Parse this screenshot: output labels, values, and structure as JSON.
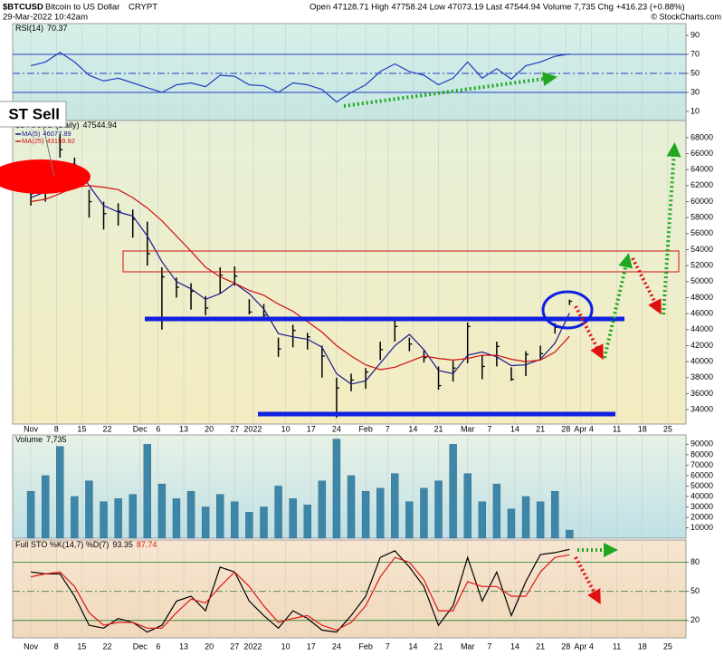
{
  "header": {
    "symbol": "$BTCUSD",
    "name": "Bitcoin to US Dollar",
    "exchange": "CRYPT",
    "timestamp": "29-Mar-2022 10:42am",
    "quote": "Open 47128.71 High 47758.24 Low 47073.19 Last 47544.94 Volume 7,735 Chg +416.23 (+0.88%)",
    "credit": "© StockCharts.com"
  },
  "annotation": "ST Sell",
  "chart_data": [
    {
      "type": "line",
      "label": "RSI(14)",
      "ylim": [
        0,
        100
      ],
      "yticks": [
        90,
        70,
        50,
        30,
        10
      ],
      "hlines": [
        70,
        50,
        30
      ],
      "series": [
        {
          "name": "RSI(14)",
          "color": "#1f3fbf",
          "latest": 70.37,
          "values": [
            58,
            62,
            72,
            62,
            48,
            42,
            45,
            40,
            35,
            30,
            38,
            40,
            36,
            48,
            47,
            38,
            37,
            30,
            40,
            38,
            33,
            20,
            30,
            38,
            52,
            60,
            52,
            48,
            38,
            45,
            62,
            45,
            55,
            44,
            58,
            62,
            68,
            70.37
          ]
        }
      ]
    },
    {
      "type": "ohlc",
      "label": "$BTCUSD (Daily)",
      "latest": 47544.94,
      "x": [
        "2021-11-01",
        "2021-11-05",
        "2021-11-09",
        "2021-11-13",
        "2021-11-17",
        "2021-11-21",
        "2021-11-25",
        "2021-11-29",
        "2021-12-03",
        "2021-12-07",
        "2021-12-11",
        "2021-12-15",
        "2021-12-19",
        "2021-12-23",
        "2021-12-27",
        "2021-12-31",
        "2022-01-04",
        "2022-01-08",
        "2022-01-12",
        "2022-01-16",
        "2022-01-20",
        "2022-01-24",
        "2022-01-28",
        "2022-02-01",
        "2022-02-05",
        "2022-02-09",
        "2022-02-13",
        "2022-02-17",
        "2022-02-21",
        "2022-02-25",
        "2022-03-01",
        "2022-03-05",
        "2022-03-09",
        "2022-03-13",
        "2022-03-17",
        "2022-03-21",
        "2022-03-25",
        "2022-03-29"
      ],
      "xlim": [
        "2021-10-27",
        "2022-04-30"
      ],
      "xticks": [
        {
          "value": "2021-11-01",
          "label": "Nov"
        },
        {
          "value": "2021-11-08",
          "label": "8"
        },
        {
          "value": "2021-11-15",
          "label": "15"
        },
        {
          "value": "2021-11-22",
          "label": "22"
        },
        {
          "value": "2021-12-01",
          "label": "Dec"
        },
        {
          "value": "2021-12-06",
          "label": "6"
        },
        {
          "value": "2021-12-13",
          "label": "13"
        },
        {
          "value": "2021-12-20",
          "label": "20"
        },
        {
          "value": "2021-12-27",
          "label": "27"
        },
        {
          "value": "2022-01-01",
          "label": "2022"
        },
        {
          "value": "2022-01-10",
          "label": "10"
        },
        {
          "value": "2022-01-17",
          "label": "17"
        },
        {
          "value": "2022-01-24",
          "label": "24"
        },
        {
          "value": "2022-02-01",
          "label": "Feb"
        },
        {
          "value": "2022-02-07",
          "label": "7"
        },
        {
          "value": "2022-02-14",
          "label": "14"
        },
        {
          "value": "2022-02-21",
          "label": "21"
        },
        {
          "value": "2022-03-01",
          "label": "Mar"
        },
        {
          "value": "2022-03-07",
          "label": "7"
        },
        {
          "value": "2022-03-14",
          "label": "14"
        },
        {
          "value": "2022-03-21",
          "label": "21"
        },
        {
          "value": "2022-03-28",
          "label": "28"
        },
        {
          "value": "2022-04-01",
          "label": "Apr"
        },
        {
          "value": "2022-04-04",
          "label": "4"
        },
        {
          "value": "2022-04-11",
          "label": "11"
        },
        {
          "value": "2022-04-18",
          "label": "18"
        },
        {
          "value": "2022-04-25",
          "label": "25"
        }
      ],
      "ylim": [
        32200,
        69800
      ],
      "yticks": [
        34000,
        36000,
        38000,
        40000,
        42000,
        44000,
        46000,
        48000,
        50000,
        52000,
        54000,
        56000,
        58000,
        60000,
        62000,
        64000,
        66000,
        68000
      ],
      "color": "#000000",
      "high": [
        62500,
        63000,
        68500,
        65500,
        61500,
        60000,
        59800,
        59000,
        57500,
        51800,
        50500,
        49800,
        48200,
        51800,
        51900,
        47800,
        47200,
        43000,
        44600,
        43600,
        42000,
        38000,
        38500,
        39200,
        42500,
        45300,
        43000,
        41400,
        39400,
        40100,
        44900,
        40800,
        42500,
        39300,
        41300,
        42000,
        44800,
        47758.24
      ],
      "low": [
        59500,
        60000,
        65500,
        62000,
        58000,
        56500,
        57000,
        55500,
        52000,
        44000,
        48000,
        46500,
        45800,
        48500,
        49500,
        45900,
        45400,
        40600,
        41800,
        41500,
        38000,
        33000,
        36300,
        36600,
        40200,
        42500,
        41300,
        39900,
        36500,
        37500,
        39800,
        37800,
        39400,
        37600,
        38200,
        40400,
        43500,
        47073.19
      ],
      "close": [
        61000,
        61500,
        66500,
        64000,
        60000,
        58500,
        58800,
        57800,
        53500,
        50600,
        49300,
        48800,
        46700,
        50800,
        50700,
        46200,
        45800,
        41600,
        43900,
        43100,
        40700,
        36700,
        37700,
        38700,
        41500,
        44400,
        42200,
        40500,
        37000,
        39200,
        44400,
        39400,
        41900,
        37800,
        40900,
        41000,
        44300,
        47544.94
      ],
      "series": [
        {
          "name": "MA(5)",
          "color": "#1a1a8c",
          "latest": 46077.89,
          "values": [
            60500,
            61200,
            64000,
            64800,
            62000,
            59500,
            58700,
            58200,
            55700,
            52500,
            50000,
            49100,
            47800,
            48500,
            49800,
            48500,
            46600,
            43500,
            43100,
            42800,
            41800,
            38500,
            37200,
            37600,
            39800,
            42000,
            43400,
            41500,
            38900,
            38500,
            40800,
            41200,
            40600,
            39500,
            39600,
            40300,
            42300,
            46077.89
          ]
        },
        {
          "name": "MA(25)",
          "color": "#d01010",
          "latest": 43159.92,
          "values": [
            60000,
            60300,
            61000,
            61800,
            62000,
            61800,
            61500,
            60500,
            59200,
            57600,
            55700,
            53800,
            51800,
            50600,
            49800,
            48900,
            48300,
            47200,
            46300,
            45000,
            43700,
            42000,
            40700,
            39600,
            39000,
            39300,
            40000,
            40700,
            40400,
            40200,
            40400,
            40800,
            40800,
            40300,
            40000,
            40200,
            41200,
            43159.92
          ]
        }
      ]
    },
    {
      "type": "bar",
      "label": "Volume",
      "latest_label": "7,735",
      "ylim": [
        0,
        99000
      ],
      "yticks": [
        10000,
        20000,
        30000,
        40000,
        50000,
        60000,
        70000,
        80000,
        90000
      ],
      "color": "#3e86a8",
      "values": [
        45000,
        60000,
        88000,
        40000,
        55000,
        35000,
        38000,
        42000,
        90000,
        52000,
        38000,
        45000,
        30000,
        42000,
        35000,
        25000,
        30000,
        50000,
        38000,
        32000,
        55000,
        95000,
        60000,
        45000,
        48000,
        62000,
        35000,
        48000,
        55000,
        90000,
        62000,
        35000,
        52000,
        28000,
        40000,
        35000,
        45000,
        7735
      ]
    },
    {
      "type": "line",
      "label": "Full STO %K(14,7) %D(7)",
      "ylim": [
        2,
        103
      ],
      "yticks": [
        80,
        50,
        20
      ],
      "hlines": [
        80,
        50,
        20
      ],
      "series": [
        {
          "name": "%K",
          "color": "#000000",
          "latest": 93.35,
          "values": [
            70,
            68,
            68,
            45,
            15,
            12,
            22,
            18,
            8,
            15,
            40,
            45,
            30,
            75,
            70,
            40,
            25,
            12,
            30,
            22,
            10,
            8,
            25,
            45,
            85,
            92,
            75,
            55,
            15,
            35,
            85,
            40,
            70,
            25,
            60,
            88,
            90,
            93.35
          ]
        },
        {
          "name": "%D",
          "color": "#e01818",
          "latest": 87.74,
          "values": [
            65,
            68,
            70,
            55,
            28,
            15,
            18,
            18,
            12,
            12,
            28,
            42,
            38,
            55,
            70,
            55,
            35,
            18,
            22,
            25,
            15,
            10,
            18,
            35,
            65,
            85,
            80,
            62,
            30,
            30,
            60,
            55,
            55,
            45,
            45,
            70,
            85,
            87.74
          ]
        }
      ]
    }
  ]
}
